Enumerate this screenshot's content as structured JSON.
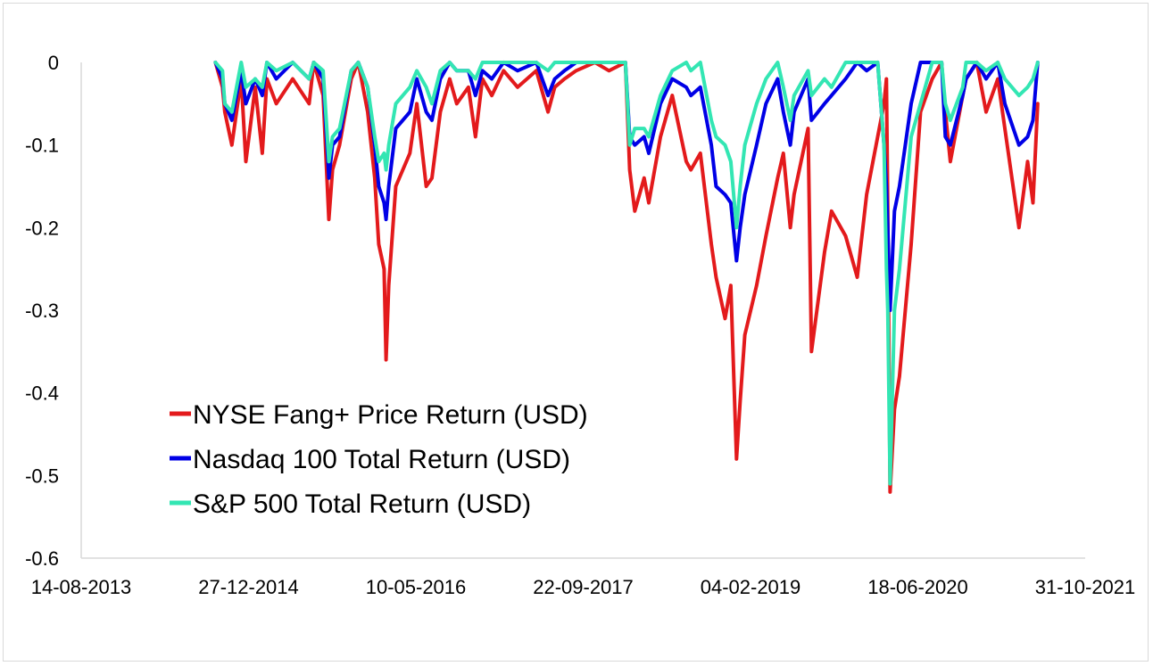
{
  "chart_data": {
    "type": "line",
    "title": "",
    "xlabel": "",
    "ylabel": "",
    "ylim": [
      -0.6,
      0
    ],
    "xlim": [
      "2013-08-14",
      "2021-10-31"
    ],
    "y_ticks": [
      "0",
      "-0.1",
      "-0.2",
      "-0.3",
      "-0.4",
      "-0.5",
      "-0.6"
    ],
    "x_ticks": [
      "14-08-2013",
      "27-12-2014",
      "10-05-2016",
      "22-09-2017",
      "04-02-2019",
      "18-06-2020",
      "31-10-2021"
    ],
    "grid": false,
    "legend_position": "lower-left",
    "series": [
      {
        "name": "NYSE Fang+ Price Return (USD)",
        "color": "#e31a1c",
        "x": [
          "2014-09-19",
          "2014-10-10",
          "2014-10-17",
          "2014-11-07",
          "2014-12-05",
          "2014-12-19",
          "2015-01-16",
          "2015-02-06",
          "2015-02-20",
          "2015-03-20",
          "2015-05-08",
          "2015-06-26",
          "2015-07-10",
          "2015-08-07",
          "2015-08-24",
          "2015-09-04",
          "2015-09-25",
          "2015-10-30",
          "2015-11-20",
          "2015-12-18",
          "2016-01-08",
          "2016-01-20",
          "2016-02-05",
          "2016-02-11",
          "2016-02-19",
          "2016-03-11",
          "2016-04-22",
          "2016-05-13",
          "2016-06-10",
          "2016-06-27",
          "2016-07-22",
          "2016-08-19",
          "2016-09-09",
          "2016-10-14",
          "2016-11-04",
          "2016-11-25",
          "2016-12-23",
          "2017-01-27",
          "2017-03-10",
          "2017-05-05",
          "2017-06-09",
          "2017-06-29",
          "2017-07-28",
          "2017-09-01",
          "2017-10-27",
          "2017-12-08",
          "2018-01-26",
          "2018-02-08",
          "2018-02-23",
          "2018-03-23",
          "2018-04-06",
          "2018-05-11",
          "2018-06-15",
          "2018-07-27",
          "2018-08-10",
          "2018-09-07",
          "2018-10-10",
          "2018-10-24",
          "2018-11-20",
          "2018-12-07",
          "2018-12-24",
          "2019-01-04",
          "2019-01-18",
          "2019-02-22",
          "2019-03-22",
          "2019-04-26",
          "2019-05-13",
          "2019-06-03",
          "2019-06-14",
          "2019-07-26",
          "2019-08-05",
          "2019-09-13",
          "2019-10-04",
          "2019-11-15",
          "2019-12-20",
          "2020-01-17",
          "2020-02-19",
          "2020-03-09",
          "2020-03-16",
          "2020-03-20",
          "2020-03-27",
          "2020-04-09",
          "2020-04-24",
          "2020-05-29",
          "2020-06-26",
          "2020-07-31",
          "2020-08-28",
          "2020-09-08",
          "2020-09-23",
          "2020-10-30",
          "2020-11-09",
          "2020-12-11",
          "2021-01-08",
          "2021-02-12",
          "2021-03-05",
          "2021-04-16",
          "2021-05-12",
          "2021-05-28",
          "2021-06-11"
        ],
        "values": [
          0,
          -0.03,
          -0.06,
          -0.1,
          -0.02,
          -0.12,
          -0.03,
          -0.11,
          -0.02,
          -0.05,
          -0.02,
          -0.05,
          0,
          -0.04,
          -0.19,
          -0.13,
          -0.1,
          -0.02,
          0,
          -0.06,
          -0.14,
          -0.22,
          -0.25,
          -0.36,
          -0.27,
          -0.15,
          -0.11,
          -0.05,
          -0.15,
          -0.14,
          -0.06,
          -0.02,
          -0.05,
          -0.03,
          -0.09,
          -0.02,
          -0.04,
          -0.01,
          -0.03,
          -0.01,
          -0.06,
          -0.03,
          -0.02,
          -0.01,
          0,
          -0.01,
          0,
          -0.13,
          -0.18,
          -0.14,
          -0.17,
          -0.09,
          -0.04,
          -0.12,
          -0.13,
          -0.11,
          -0.22,
          -0.26,
          -0.31,
          -0.27,
          -0.48,
          -0.41,
          -0.33,
          -0.27,
          -0.21,
          -0.14,
          -0.11,
          -0.2,
          -0.16,
          -0.08,
          -0.35,
          -0.23,
          -0.18,
          -0.21,
          -0.26,
          -0.16,
          -0.09,
          -0.05,
          -0.02,
          -0.18,
          -0.52,
          -0.42,
          -0.38,
          -0.22,
          -0.06,
          -0.02,
          0,
          -0.06,
          -0.12,
          -0.04,
          -0.02,
          0,
          -0.06,
          -0.02,
          -0.08,
          -0.2,
          -0.12,
          -0.17,
          -0.05
        ]
      },
      {
        "name": "Nasdaq 100 Total Return (USD)",
        "color": "#0000e6",
        "x": [
          "2014-09-19",
          "2014-10-10",
          "2014-10-17",
          "2014-11-07",
          "2014-12-05",
          "2014-12-19",
          "2015-01-16",
          "2015-02-06",
          "2015-02-20",
          "2015-03-20",
          "2015-05-08",
          "2015-06-26",
          "2015-07-10",
          "2015-08-07",
          "2015-08-24",
          "2015-09-04",
          "2015-09-25",
          "2015-10-30",
          "2015-11-20",
          "2015-12-18",
          "2016-01-08",
          "2016-01-20",
          "2016-02-05",
          "2016-02-11",
          "2016-02-19",
          "2016-03-11",
          "2016-04-22",
          "2016-05-13",
          "2016-06-10",
          "2016-06-27",
          "2016-07-22",
          "2016-08-19",
          "2016-09-09",
          "2016-10-14",
          "2016-11-04",
          "2016-11-25",
          "2016-12-23",
          "2017-01-27",
          "2017-03-10",
          "2017-05-05",
          "2017-06-09",
          "2017-06-29",
          "2017-07-28",
          "2017-09-01",
          "2017-10-27",
          "2017-12-08",
          "2018-01-26",
          "2018-02-08",
          "2018-02-23",
          "2018-03-23",
          "2018-04-06",
          "2018-05-11",
          "2018-06-15",
          "2018-07-27",
          "2018-08-10",
          "2018-09-07",
          "2018-10-10",
          "2018-10-24",
          "2018-11-20",
          "2018-12-07",
          "2018-12-24",
          "2019-01-04",
          "2019-01-18",
          "2019-02-22",
          "2019-03-22",
          "2019-04-26",
          "2019-05-13",
          "2019-06-03",
          "2019-06-14",
          "2019-07-26",
          "2019-08-05",
          "2019-09-13",
          "2019-10-04",
          "2019-11-15",
          "2019-12-20",
          "2020-01-17",
          "2020-02-19",
          "2020-03-09",
          "2020-03-16",
          "2020-03-20",
          "2020-03-27",
          "2020-04-09",
          "2020-04-24",
          "2020-05-29",
          "2020-06-26",
          "2020-07-31",
          "2020-08-28",
          "2020-09-08",
          "2020-09-23",
          "2020-10-30",
          "2020-11-09",
          "2020-12-11",
          "2021-01-08",
          "2021-02-12",
          "2021-03-05",
          "2021-04-16",
          "2021-05-12",
          "2021-05-28",
          "2021-06-11"
        ],
        "values": [
          0,
          -0.02,
          -0.05,
          -0.07,
          -0.01,
          -0.05,
          -0.02,
          -0.04,
          0,
          -0.02,
          0,
          -0.02,
          0,
          -0.02,
          -0.14,
          -0.1,
          -0.09,
          -0.01,
          0,
          -0.03,
          -0.1,
          -0.15,
          -0.17,
          -0.19,
          -0.15,
          -0.08,
          -0.06,
          -0.02,
          -0.06,
          -0.07,
          -0.02,
          0,
          -0.01,
          -0.01,
          -0.04,
          -0.01,
          -0.02,
          0,
          -0.01,
          0,
          -0.04,
          -0.02,
          -0.01,
          0,
          0,
          0,
          0,
          -0.09,
          -0.1,
          -0.09,
          -0.11,
          -0.05,
          -0.02,
          -0.03,
          -0.04,
          -0.03,
          -0.1,
          -0.15,
          -0.16,
          -0.17,
          -0.24,
          -0.2,
          -0.16,
          -0.1,
          -0.05,
          -0.02,
          -0.06,
          -0.1,
          -0.06,
          -0.02,
          -0.07,
          -0.05,
          -0.04,
          -0.02,
          0,
          -0.01,
          0,
          -0.1,
          -0.15,
          -0.2,
          -0.3,
          -0.18,
          -0.15,
          -0.05,
          0,
          0,
          0,
          -0.09,
          -0.1,
          -0.04,
          -0.02,
          0,
          -0.02,
          0,
          -0.05,
          -0.1,
          -0.09,
          -0.07,
          0
        ]
      },
      {
        "name": "S&P 500 Total Return (USD)",
        "color": "#33e6b3",
        "x": [
          "2014-09-19",
          "2014-10-10",
          "2014-10-17",
          "2014-11-07",
          "2014-12-05",
          "2014-12-19",
          "2015-01-16",
          "2015-02-06",
          "2015-02-20",
          "2015-03-20",
          "2015-05-08",
          "2015-06-26",
          "2015-07-10",
          "2015-08-07",
          "2015-08-24",
          "2015-09-04",
          "2015-09-25",
          "2015-10-30",
          "2015-11-20",
          "2015-12-18",
          "2016-01-08",
          "2016-01-20",
          "2016-02-05",
          "2016-02-11",
          "2016-02-19",
          "2016-03-11",
          "2016-04-22",
          "2016-05-13",
          "2016-06-10",
          "2016-06-27",
          "2016-07-22",
          "2016-08-19",
          "2016-09-09",
          "2016-10-14",
          "2016-11-04",
          "2016-11-25",
          "2016-12-23",
          "2017-01-27",
          "2017-03-10",
          "2017-05-05",
          "2017-06-09",
          "2017-06-29",
          "2017-07-28",
          "2017-09-01",
          "2017-10-27",
          "2017-12-08",
          "2018-01-26",
          "2018-02-08",
          "2018-02-23",
          "2018-03-23",
          "2018-04-06",
          "2018-05-11",
          "2018-06-15",
          "2018-07-27",
          "2018-08-10",
          "2018-09-07",
          "2018-10-10",
          "2018-10-24",
          "2018-11-20",
          "2018-12-07",
          "2018-12-24",
          "2019-01-04",
          "2019-01-18",
          "2019-02-22",
          "2019-03-22",
          "2019-04-26",
          "2019-05-13",
          "2019-06-03",
          "2019-06-14",
          "2019-07-26",
          "2019-08-05",
          "2019-09-13",
          "2019-10-04",
          "2019-11-15",
          "2019-12-20",
          "2020-01-17",
          "2020-02-19",
          "2020-03-09",
          "2020-03-16",
          "2020-03-20",
          "2020-03-27",
          "2020-04-09",
          "2020-04-24",
          "2020-05-29",
          "2020-06-26",
          "2020-07-31",
          "2020-08-28",
          "2020-09-08",
          "2020-09-23",
          "2020-10-30",
          "2020-11-09",
          "2020-12-11",
          "2021-01-08",
          "2021-02-12",
          "2021-03-05",
          "2021-04-16",
          "2021-05-12",
          "2021-05-28",
          "2021-06-11"
        ],
        "values": [
          0,
          -0.01,
          -0.05,
          -0.06,
          0,
          -0.03,
          -0.02,
          -0.03,
          0,
          -0.01,
          0,
          -0.02,
          0,
          -0.01,
          -0.12,
          -0.09,
          -0.08,
          -0.01,
          0,
          -0.03,
          -0.09,
          -0.12,
          -0.11,
          -0.13,
          -0.1,
          -0.05,
          -0.03,
          -0.01,
          -0.03,
          -0.05,
          -0.01,
          0,
          -0.01,
          -0.01,
          -0.02,
          0,
          0,
          0,
          0,
          0,
          -0.01,
          0,
          0,
          0,
          0,
          0,
          0,
          -0.1,
          -0.08,
          -0.08,
          -0.09,
          -0.04,
          -0.01,
          0,
          -0.01,
          0,
          -0.07,
          -0.09,
          -0.1,
          -0.12,
          -0.2,
          -0.15,
          -0.1,
          -0.05,
          -0.02,
          0,
          -0.03,
          -0.07,
          -0.04,
          -0.01,
          -0.04,
          -0.02,
          -0.03,
          0,
          0,
          0,
          0,
          -0.1,
          -0.25,
          -0.3,
          -0.51,
          -0.3,
          -0.25,
          -0.09,
          -0.05,
          0,
          0,
          -0.05,
          -0.07,
          -0.03,
          0,
          0,
          -0.01,
          0,
          -0.02,
          -0.04,
          -0.03,
          -0.02,
          0
        ]
      }
    ]
  }
}
